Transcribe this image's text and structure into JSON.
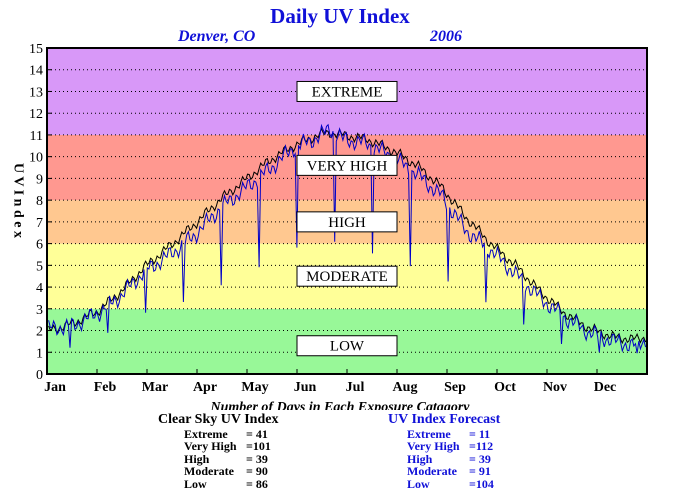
{
  "chart_data": {
    "type": "line",
    "title": "Daily UV Index",
    "subtitle_location": "Denver, CO",
    "subtitle_year": "2006",
    "ylabel": "U V  I n d e x",
    "xlabel": "Number of Days in Each Exposure Catagory",
    "ylim": [
      0,
      15
    ],
    "xlim": [
      0,
      365
    ],
    "yticks": [
      0,
      1,
      2,
      3,
      4,
      5,
      6,
      7,
      8,
      9,
      10,
      11,
      12,
      13,
      14,
      15
    ],
    "month_ticks": [
      "Jan",
      "Feb",
      "Mar",
      "Apr",
      "May",
      "Jun",
      "Jul",
      "Aug",
      "Sep",
      "Oct",
      "Nov",
      "Dec"
    ],
    "grid": true,
    "bands": [
      {
        "label": "LOW",
        "from": 0,
        "to": 3,
        "color": "#98f898"
      },
      {
        "label": "MODERATE",
        "from": 3,
        "to": 6,
        "color": "#ffff98"
      },
      {
        "label": "HIGH",
        "from": 6,
        "to": 8,
        "color": "#ffc890"
      },
      {
        "label": "VERY HIGH",
        "from": 8,
        "to": 11,
        "color": "#ff9890"
      },
      {
        "label": "EXTREME",
        "from": 11,
        "to": 15,
        "color": "#d898f8"
      }
    ],
    "series": [
      {
        "name": "Clear Sky UV Index",
        "color": "#000000",
        "x": [
          1,
          15,
          31,
          45,
          59,
          75,
          90,
          105,
          120,
          135,
          150,
          165,
          172,
          180,
          195,
          210,
          225,
          240,
          255,
          270,
          285,
          300,
          315,
          330,
          345,
          358,
          365
        ],
        "values": [
          2.0,
          2.3,
          2.9,
          3.8,
          4.9,
          5.9,
          6.9,
          8.0,
          8.9,
          9.8,
          10.5,
          11.0,
          11.1,
          11.0,
          10.8,
          10.3,
          9.6,
          8.6,
          7.2,
          6.0,
          5.0,
          3.8,
          2.8,
          2.1,
          1.7,
          1.6,
          1.7
        ]
      },
      {
        "name": "UV Index Forecast",
        "color": "#0000c8",
        "x": [
          1,
          15,
          31,
          45,
          59,
          75,
          90,
          105,
          120,
          135,
          150,
          165,
          172,
          180,
          195,
          210,
          225,
          240,
          255,
          270,
          285,
          300,
          315,
          330,
          345,
          358,
          365
        ],
        "values": [
          2.1,
          2.2,
          2.8,
          3.6,
          4.7,
          5.5,
          6.4,
          7.6,
          8.5,
          9.4,
          10.4,
          10.9,
          11.3,
          10.8,
          10.6,
          10.0,
          9.2,
          8.2,
          6.6,
          5.7,
          4.6,
          3.5,
          2.6,
          1.9,
          1.5,
          1.3,
          1.6
        ]
      }
    ]
  },
  "stats": {
    "clear": {
      "heading": "Clear Sky UV Index",
      "rows": [
        {
          "label": "Extreme",
          "value": "=  41"
        },
        {
          "label": "Very High",
          "value": "=101"
        },
        {
          "label": "High",
          "value": "=  39"
        },
        {
          "label": "Moderate",
          "value": "=  90"
        },
        {
          "label": "Low",
          "value": "=  86"
        }
      ]
    },
    "forecast": {
      "heading": "UV Index Forecast",
      "rows": [
        {
          "label": "Extreme",
          "value": "=  11"
        },
        {
          "label": "Very High",
          "value": "=112"
        },
        {
          "label": "High",
          "value": "=  39"
        },
        {
          "label": "Moderate",
          "value": "=  91"
        },
        {
          "label": "Low",
          "value": "=104"
        }
      ]
    }
  }
}
